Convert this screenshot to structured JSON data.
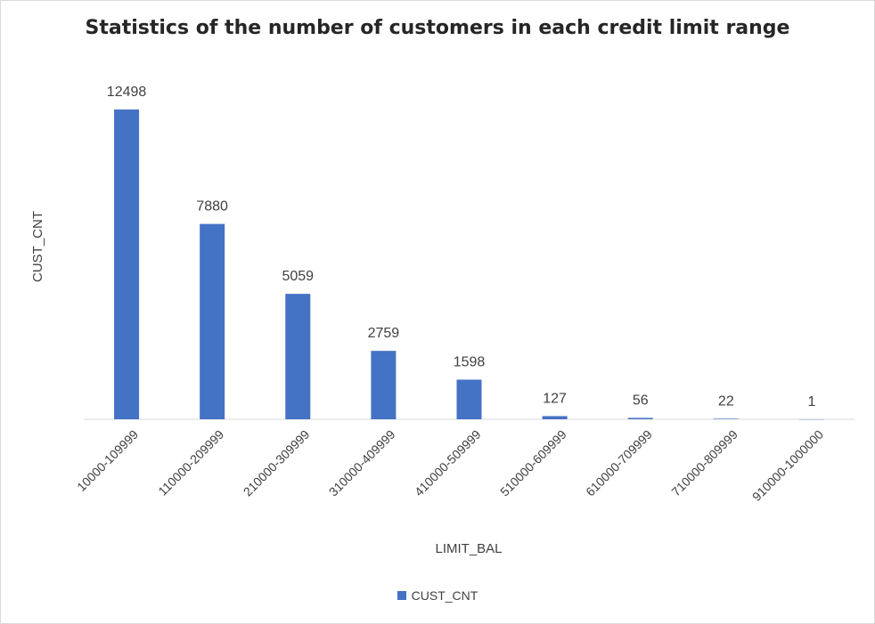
{
  "chart_data": {
    "type": "bar",
    "title": "Statistics of the number of customers in each credit limit range",
    "xlabel": "LIMIT_BAL",
    "ylabel": "CUST_CNT",
    "categories": [
      "10000-109999",
      "110000-209999",
      "210000-309999",
      "310000-409999",
      "410000-509999",
      "510000-609999",
      "610000-709999",
      "710000-809999",
      "910000-1000000"
    ],
    "series": [
      {
        "name": "CUST_CNT",
        "values": [
          12498,
          7880,
          5059,
          2759,
          1598,
          127,
          56,
          22,
          1
        ]
      }
    ],
    "ylim": [
      0,
      12498
    ],
    "grid": false,
    "legend": "bottom",
    "bar_color": "#4472C4"
  }
}
